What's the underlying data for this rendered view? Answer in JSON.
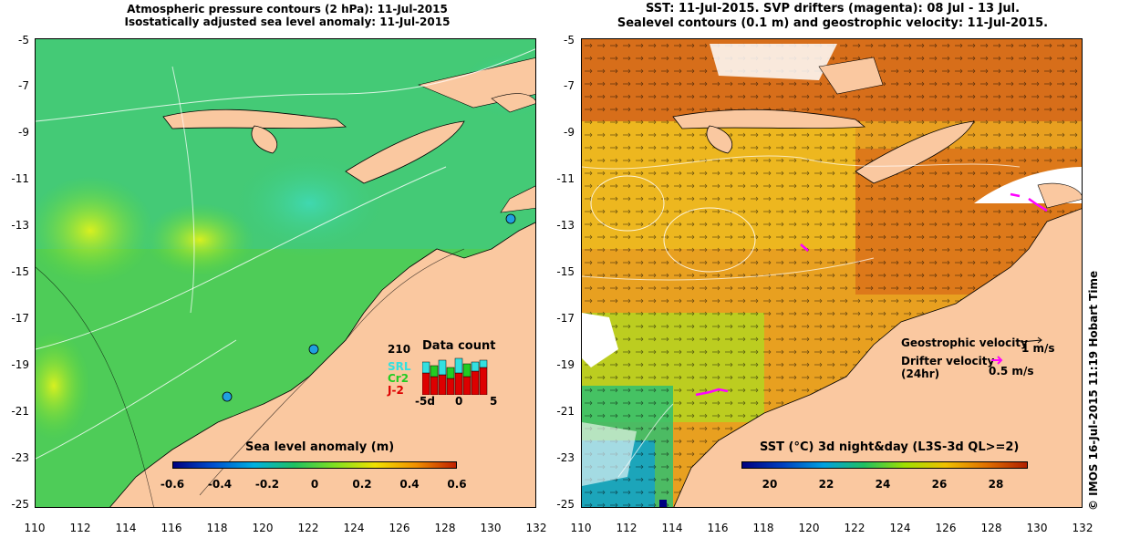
{
  "left_panel": {
    "title_line1": "Atmospheric pressure contours (2 hPa): 11-Jul-2015",
    "title_line2": "Isostatically adjusted sea level anomaly: 11-Jul-2015",
    "colorbar": {
      "title": "Sea level anomaly (m)",
      "ticks": [
        "-0.6",
        "-0.4",
        "-0.2",
        "0",
        "0.2",
        "0.4",
        "0.6"
      ]
    },
    "data_count": {
      "title": "Data count",
      "max_label": "210",
      "series": [
        {
          "name": "SRL",
          "color": "#33e0e0"
        },
        {
          "name": "Cr2",
          "color": "#22cc22"
        },
        {
          "name": "J-2",
          "color": "#dd0000"
        }
      ],
      "x_ticks": [
        "-5d",
        "0",
        "5"
      ]
    }
  },
  "right_panel": {
    "title_line1": "SST: 11-Jul-2015. SVP drifters (magenta): 08 Jul - 13 Jul.",
    "title_line2": "Sealevel contours (0.1 m) and geostrophic velocity: 11-Jul-2015.",
    "colorbar": {
      "title": "SST (°C) 3d night&day (L3S-3d QL>=2)",
      "ticks": [
        "20",
        "22",
        "24",
        "26",
        "28"
      ]
    },
    "legend": {
      "geostrophic_label": "Geostrophic velocity",
      "geostrophic_scale": "1 m/s",
      "drifter_label_line1": "Drifter velocity",
      "drifter_label_line2": "(24hr)",
      "drifter_scale": "0.5 m/s"
    }
  },
  "axes": {
    "y_ticks": [
      "-5",
      "-7",
      "-9",
      "-11",
      "-13",
      "-15",
      "-17",
      "-19",
      "-21",
      "-23",
      "-25"
    ],
    "x_ticks": [
      "110",
      "112",
      "114",
      "116",
      "118",
      "120",
      "122",
      "124",
      "126",
      "128",
      "130",
      "132"
    ]
  },
  "credit": "© IMOS 16-Jul-2015 11:19 Hobart Time",
  "colors": {
    "land": "#fac8a0",
    "sla_ramp": [
      "#000080",
      "#0050d0",
      "#00b0e0",
      "#20c060",
      "#80e020",
      "#f0e000",
      "#f09000",
      "#c02000"
    ],
    "sst_ramp": [
      "#000080",
      "#0040c0",
      "#00a0e0",
      "#20c060",
      "#a0e000",
      "#f0c000",
      "#e07000",
      "#b02000"
    ]
  }
}
